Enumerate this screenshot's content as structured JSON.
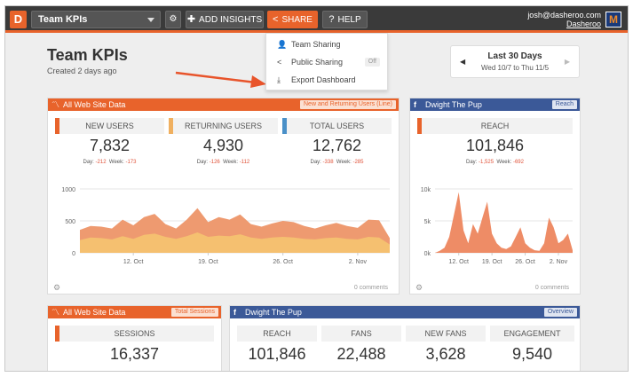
{
  "app": {
    "logo_letter": "D",
    "dashboard_name": "Team KPIs"
  },
  "toolbar": {
    "add_insights": "ADD INSIGHTS",
    "share": "SHARE",
    "help": "HELP"
  },
  "user": {
    "email": "josh@dasheroo.com",
    "link": "Dasheroo",
    "avatar_letter": "M"
  },
  "page": {
    "title": "Team KPIs",
    "subtitle": "Created 2 days ago"
  },
  "daterange": {
    "title": "Last 30 Days",
    "range": "Wed 10/7 to Thu 11/5",
    "prev": "◀",
    "next": "▶"
  },
  "share_menu": {
    "items": [
      {
        "label": "Team Sharing",
        "icon": "team-icon"
      },
      {
        "label": "Public Sharing",
        "icon": "share-icon",
        "badge": "Off"
      },
      {
        "label": "Export Dashboard",
        "icon": "export-icon"
      }
    ]
  },
  "panels": {
    "web": {
      "title": "All Web Site Data",
      "tag": "New and Returning Users (Line)",
      "metrics": [
        {
          "label": "NEW USERS",
          "value": "7,832",
          "day_label": "Day:",
          "day": "-212",
          "week_label": "Week:",
          "week": "-173",
          "color": "#e8632b"
        },
        {
          "label": "RETURNING USERS",
          "value": "4,930",
          "day_label": "Day:",
          "day": "-126",
          "week_label": "Week:",
          "week": "-112",
          "color": "#f0b060"
        },
        {
          "label": "TOTAL USERS",
          "value": "12,762",
          "day_label": "Day:",
          "day": "-338",
          "week_label": "Week:",
          "week": "-285",
          "color": "#4a90c8"
        }
      ],
      "footer": "0 comments"
    },
    "fb": {
      "title": "Dwight The Pup",
      "tag": "Reach",
      "metric": {
        "label": "REACH",
        "value": "101,846",
        "day_label": "Day:",
        "day": "-1,525",
        "week_label": "Week:",
        "week": "-692",
        "color": "#e8632b"
      },
      "footer": "0 comments"
    },
    "sessions": {
      "title": "All Web Site Data",
      "tag": "Total Sessions",
      "metric": {
        "label": "SESSIONS",
        "value": "16,337"
      }
    },
    "overview": {
      "title": "Dwight The Pup",
      "tag": "Overview",
      "metrics": [
        {
          "label": "REACH",
          "value": "101,846"
        },
        {
          "label": "FANS",
          "value": "22,488"
        },
        {
          "label": "NEW FANS",
          "value": "3,628"
        },
        {
          "label": "ENGAGEMENT",
          "value": "9,540"
        }
      ]
    }
  },
  "chart_data": [
    {
      "type": "area",
      "x": [
        "10/7",
        "10/8",
        "10/9",
        "10/10",
        "10/11",
        "10/12",
        "10/13",
        "10/14",
        "10/15",
        "10/16",
        "10/17",
        "10/18",
        "10/19",
        "10/20",
        "10/21",
        "10/22",
        "10/23",
        "10/24",
        "10/25",
        "10/26",
        "10/27",
        "10/28",
        "10/29",
        "10/30",
        "10/31",
        "11/1",
        "11/2",
        "11/3",
        "11/4",
        "11/5"
      ],
      "xticks": [
        "12. Oct",
        "19. Oct",
        "26. Oct",
        "2. Nov"
      ],
      "yticks": [
        "1000",
        "500",
        "0"
      ],
      "ylim": [
        0,
        1000
      ],
      "series": [
        {
          "values": [
            360,
            420,
            410,
            380,
            520,
            430,
            560,
            610,
            450,
            380,
            520,
            700,
            480,
            560,
            520,
            600,
            450,
            410,
            460,
            500,
            480,
            420,
            380,
            430,
            470,
            420,
            390,
            520,
            510,
            230
          ]
        },
        {
          "values": [
            200,
            240,
            230,
            210,
            260,
            220,
            280,
            300,
            250,
            220,
            260,
            320,
            250,
            270,
            260,
            290,
            240,
            220,
            240,
            250,
            240,
            220,
            210,
            230,
            240,
            220,
            210,
            250,
            240,
            130
          ]
        }
      ]
    },
    {
      "type": "area",
      "x": [
        "10/7",
        "10/8",
        "10/9",
        "10/10",
        "10/11",
        "10/12",
        "10/13",
        "10/14",
        "10/15",
        "10/16",
        "10/17",
        "10/18",
        "10/19",
        "10/20",
        "10/21",
        "10/22",
        "10/23",
        "10/24",
        "10/25",
        "10/26",
        "10/27",
        "10/28",
        "10/29",
        "10/30",
        "10/31",
        "11/1",
        "11/2",
        "11/3",
        "11/4",
        "11/5"
      ],
      "xticks": [
        "12. Oct",
        "19. Oct",
        "26. Oct",
        "2. Nov"
      ],
      "yticks": [
        "10k",
        "5k",
        "0k"
      ],
      "ylim": [
        0,
        10000
      ],
      "series": [
        {
          "values": [
            0,
            300,
            800,
            2500,
            6000,
            9500,
            3500,
            1500,
            4500,
            3000,
            5500,
            8000,
            3000,
            1500,
            800,
            600,
            1000,
            2500,
            4000,
            1500,
            800,
            400,
            300,
            1500,
            5500,
            4000,
            1500,
            2000,
            3000,
            400
          ]
        }
      ]
    }
  ]
}
